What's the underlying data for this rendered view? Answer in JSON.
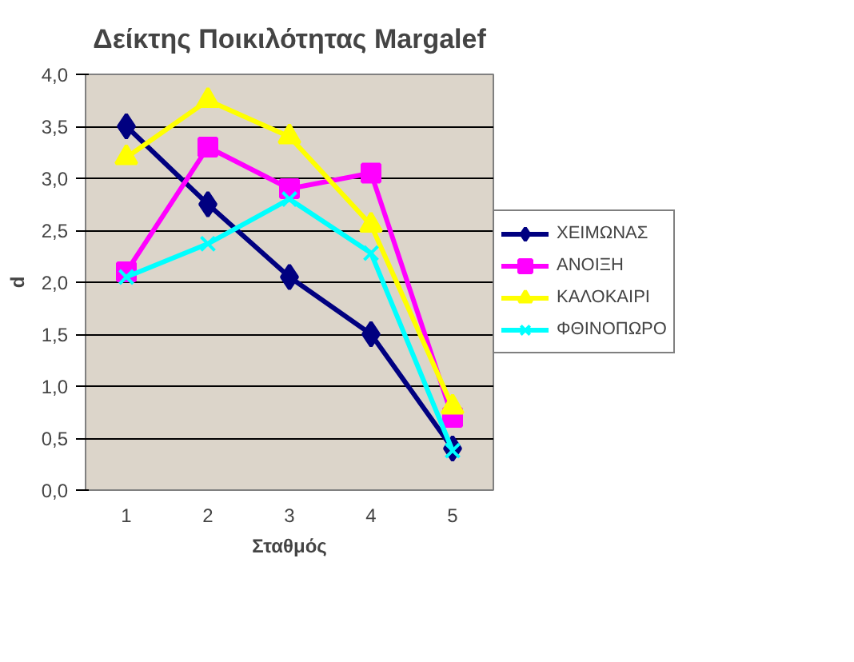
{
  "chart_data": {
    "type": "line",
    "title": "Δείκτης Ποικιλότητας Margalef",
    "xlabel": "Σταθμός",
    "ylabel": "d",
    "categories": [
      "1",
      "2",
      "3",
      "4",
      "5"
    ],
    "series": [
      {
        "name": "ΧΕΙΜΩΝΑΣ",
        "color": "#000080",
        "marker": "diamond",
        "values": [
          3.5,
          2.75,
          2.05,
          1.5,
          0.4
        ]
      },
      {
        "name": "ΑΝΟΙΞΗ",
        "color": "#ff00ff",
        "marker": "square",
        "values": [
          2.1,
          3.3,
          2.9,
          3.05,
          0.7
        ]
      },
      {
        "name": "ΚΑΛΟΚΑΙΡΙ",
        "color": "#ffff00",
        "marker": "triangle",
        "values": [
          3.2,
          3.75,
          3.4,
          2.55,
          0.8
        ]
      },
      {
        "name": "ΦΘΙΝΟΠΩΡΟ",
        "color": "#00ffff",
        "marker": "cross",
        "values": [
          2.05,
          2.37,
          2.8,
          2.28,
          0.38
        ]
      }
    ],
    "ylim": [
      0,
      4
    ],
    "yticks": [
      {
        "value": 0,
        "label": "0,0"
      },
      {
        "value": 0.5,
        "label": "0,5"
      },
      {
        "value": 1,
        "label": "1,0"
      },
      {
        "value": 1.5,
        "label": "1,5"
      },
      {
        "value": 2,
        "label": "2,0"
      },
      {
        "value": 2.5,
        "label": "2,5"
      },
      {
        "value": 3,
        "label": "3,0"
      },
      {
        "value": 3.5,
        "label": "3,5"
      },
      {
        "value": 4,
        "label": "4,0"
      }
    ],
    "grid": "y",
    "legend": "right",
    "line_style": "solid"
  }
}
